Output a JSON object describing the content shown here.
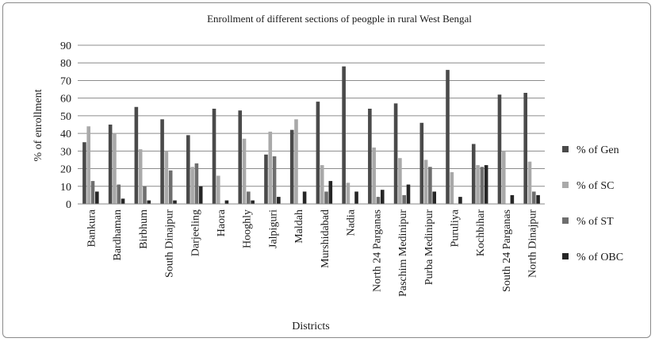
{
  "chart_data": {
    "type": "bar",
    "title": "Enrollment of different sections of peogple in rural West Bengal",
    "xlabel": "Districts",
    "ylabel": "% of enrollment",
    "ylim": [
      0,
      90
    ],
    "yticks": [
      0,
      10,
      20,
      30,
      40,
      50,
      60,
      70,
      80,
      90
    ],
    "grid": true,
    "legend_position": "right",
    "categories": [
      "Bankura",
      "Bardhaman",
      "Birbhum",
      "South Dinajpur",
      "Darjeeling",
      "Haora",
      "Hooghly",
      "Jalpiguri",
      "Maldah",
      "Murshidabad",
      "Nadia",
      "North 24 Parganas",
      "Paschim Medinipur",
      "Purba Medinipur",
      "Puruliya",
      "Kochbihar",
      "South 24 Parganas",
      "North Dinajpur"
    ],
    "series": [
      {
        "name": "% of Gen",
        "color": "#4a4a4a",
        "values": [
          35,
          45,
          55,
          48,
          39,
          54,
          53,
          28,
          42,
          58,
          78,
          54,
          57,
          46,
          76,
          34,
          62,
          63
        ]
      },
      {
        "name": "% of SC",
        "color": "#a9a9a9",
        "values": [
          44,
          40,
          31,
          30,
          21,
          16,
          37,
          41,
          48,
          22,
          12,
          32,
          26,
          25,
          18,
          22,
          30,
          24
        ]
      },
      {
        "name": "% of ST",
        "color": "#6e6e6e",
        "values": [
          13,
          11,
          10,
          19,
          23,
          0,
          7,
          27,
          0,
          7,
          0,
          4,
          5,
          21,
          0,
          21,
          0,
          7
        ]
      },
      {
        "name": "% of OBC",
        "color": "#262626",
        "values": [
          7,
          3,
          2,
          2,
          10,
          2,
          2,
          4,
          7,
          13,
          7,
          8,
          11,
          7,
          4,
          22,
          5,
          5
        ]
      }
    ]
  }
}
